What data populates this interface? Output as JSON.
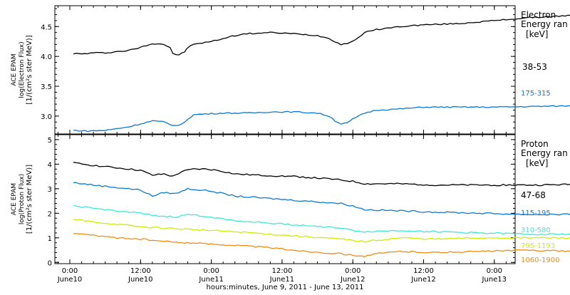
{
  "chart_data": [
    {
      "type": "line",
      "ylabel_lines": [
        "ACE EPAM",
        "log(Electron Flux)",
        "[1/(cm²s ster MeV)]"
      ],
      "legend_title": [
        "Electron",
        "Energy ran",
        "[keV]"
      ],
      "ylim": [
        2.7,
        4.85
      ],
      "yticks": [
        {
          "v": 3.0,
          "label": "3.0"
        },
        {
          "v": 3.5,
          "label": "3.5"
        },
        {
          "v": 4.0,
          "label": "4.0"
        },
        {
          "v": 4.5,
          "label": "4.5"
        }
      ],
      "series": [
        {
          "name": "38-53",
          "color": "#000000",
          "points": [
            [
              0.6,
              4.05
            ],
            [
              2,
              4.04
            ],
            [
              4,
              4.06
            ],
            [
              6,
              4.06
            ],
            [
              8,
              4.08
            ],
            [
              10,
              4.1
            ],
            [
              12,
              4.15
            ],
            [
              13.5,
              4.2
            ],
            [
              15,
              4.22
            ],
            [
              16,
              4.2
            ],
            [
              17,
              4.15
            ],
            [
              17.5,
              4.05
            ],
            [
              18.5,
              4.02
            ],
            [
              19.5,
              4.08
            ],
            [
              20,
              4.15
            ],
            [
              21,
              4.2
            ],
            [
              22,
              4.22
            ],
            [
              24,
              4.25
            ],
            [
              26,
              4.3
            ],
            [
              28,
              4.35
            ],
            [
              30,
              4.38
            ],
            [
              34,
              4.4
            ],
            [
              38,
              4.38
            ],
            [
              42,
              4.35
            ],
            [
              44,
              4.3
            ],
            [
              45,
              4.25
            ],
            [
              46,
              4.2
            ],
            [
              47,
              4.22
            ],
            [
              48,
              4.25
            ],
            [
              50,
              4.4
            ],
            [
              52,
              4.45
            ],
            [
              56,
              4.5
            ],
            [
              60,
              4.53
            ],
            [
              66,
              4.55
            ],
            [
              72,
              4.6
            ],
            [
              78,
              4.65
            ],
            [
              84,
              4.68
            ],
            [
              88,
              4.7
            ],
            [
              92,
              4.72
            ],
            [
              96,
              4.72
            ],
            [
              100,
              4.72
            ],
            [
              103.5,
              4.71
            ]
          ]
        },
        {
          "name": "175-315",
          "color": "#0a78d2",
          "points": [
            [
              0.6,
              2.76
            ],
            [
              3,
              2.75
            ],
            [
              6,
              2.76
            ],
            [
              8,
              2.79
            ],
            [
              10,
              2.82
            ],
            [
              12,
              2.87
            ],
            [
              14,
              2.92
            ],
            [
              16,
              2.9
            ],
            [
              17,
              2.86
            ],
            [
              18,
              2.84
            ],
            [
              19,
              2.86
            ],
            [
              20,
              2.95
            ],
            [
              21,
              3.02
            ],
            [
              22,
              3.03
            ],
            [
              26,
              3.05
            ],
            [
              30,
              3.05
            ],
            [
              34,
              3.07
            ],
            [
              38,
              3.07
            ],
            [
              42,
              3.05
            ],
            [
              44,
              3.0
            ],
            [
              45,
              2.92
            ],
            [
              46,
              2.87
            ],
            [
              47,
              2.88
            ],
            [
              48,
              2.95
            ],
            [
              50,
              3.05
            ],
            [
              52,
              3.1
            ],
            [
              56,
              3.12
            ],
            [
              60,
              3.15
            ],
            [
              66,
              3.15
            ],
            [
              72,
              3.15
            ],
            [
              78,
              3.16
            ],
            [
              84,
              3.17
            ],
            [
              88,
              3.18
            ],
            [
              94,
              3.18
            ],
            [
              100,
              3.17
            ],
            [
              103.5,
              3.17
            ]
          ]
        }
      ]
    },
    {
      "type": "line",
      "ylabel_lines": [
        "ACE EPAM",
        "log(Proton Flux)",
        "[1/(cm²s ster MeV)]"
      ],
      "legend_title": [
        "Proton",
        "Energy ran",
        "[keV]"
      ],
      "ylim": [
        -0.05,
        5.2
      ],
      "yticks": [
        {
          "v": 0,
          "label": "0"
        },
        {
          "v": 1,
          "label": "1"
        },
        {
          "v": 2,
          "label": "2"
        },
        {
          "v": 3,
          "label": "3"
        },
        {
          "v": 4,
          "label": "4"
        },
        {
          "v": 5,
          "label": "5"
        }
      ],
      "series": [
        {
          "name": "47-68",
          "color": "#000000",
          "points": [
            [
              0.6,
              4.05
            ],
            [
              4,
              3.95
            ],
            [
              8,
              3.85
            ],
            [
              12,
              3.75
            ],
            [
              14,
              3.55
            ],
            [
              16,
              3.6
            ],
            [
              17.5,
              3.5
            ],
            [
              19,
              3.7
            ],
            [
              21,
              3.8
            ],
            [
              23,
              3.8
            ],
            [
              25,
              3.75
            ],
            [
              28,
              3.6
            ],
            [
              32,
              3.55
            ],
            [
              38,
              3.5
            ],
            [
              44,
              3.4
            ],
            [
              48,
              3.3
            ],
            [
              50,
              3.2
            ],
            [
              56,
              3.2
            ],
            [
              62,
              3.15
            ],
            [
              70,
              3.15
            ],
            [
              80,
              3.15
            ],
            [
              86,
              3.18
            ],
            [
              88,
              3.35
            ],
            [
              89,
              3.15
            ],
            [
              92,
              3.3
            ],
            [
              94,
              3.15
            ],
            [
              100,
              3.12
            ],
            [
              103.5,
              3.12
            ]
          ]
        },
        {
          "name": "115-195",
          "color": "#0a78d2",
          "points": [
            [
              0.6,
              3.25
            ],
            [
              4,
              3.15
            ],
            [
              8,
              3.05
            ],
            [
              12,
              2.95
            ],
            [
              14,
              2.7
            ],
            [
              16,
              2.85
            ],
            [
              18,
              2.8
            ],
            [
              20,
              3.0
            ],
            [
              24,
              2.9
            ],
            [
              28,
              2.7
            ],
            [
              34,
              2.6
            ],
            [
              40,
              2.5
            ],
            [
              46,
              2.4
            ],
            [
              48,
              2.3
            ],
            [
              50,
              2.15
            ],
            [
              56,
              2.1
            ],
            [
              62,
              2.05
            ],
            [
              70,
              2.0
            ],
            [
              78,
              1.95
            ],
            [
              86,
              1.95
            ],
            [
              88,
              2.1
            ],
            [
              90,
              1.9
            ],
            [
              100,
              1.9
            ],
            [
              103.5,
              1.88
            ]
          ]
        },
        {
          "name": "310-580",
          "color": "#3fe8d2",
          "points": [
            [
              0.6,
              2.3
            ],
            [
              4,
              2.2
            ],
            [
              8,
              2.1
            ],
            [
              12,
              2.0
            ],
            [
              14,
              1.9
            ],
            [
              18,
              1.85
            ],
            [
              20,
              1.95
            ],
            [
              24,
              1.85
            ],
            [
              28,
              1.7
            ],
            [
              34,
              1.6
            ],
            [
              40,
              1.5
            ],
            [
              46,
              1.4
            ],
            [
              48,
              1.3
            ],
            [
              50,
              1.25
            ],
            [
              56,
              1.3
            ],
            [
              62,
              1.25
            ],
            [
              70,
              1.2
            ],
            [
              78,
              1.15
            ],
            [
              86,
              1.15
            ],
            [
              90,
              1.18
            ],
            [
              96,
              1.2
            ],
            [
              100,
              1.2
            ],
            [
              103.5,
              1.18
            ]
          ]
        },
        {
          "name": "795-1193",
          "color": "#c8f000",
          "points": [
            [
              0.6,
              1.75
            ],
            [
              4,
              1.65
            ],
            [
              8,
              1.55
            ],
            [
              12,
              1.45
            ],
            [
              16,
              1.4
            ],
            [
              20,
              1.35
            ],
            [
              24,
              1.3
            ],
            [
              28,
              1.25
            ],
            [
              34,
              1.15
            ],
            [
              40,
              1.05
            ],
            [
              46,
              0.95
            ],
            [
              50,
              0.85
            ],
            [
              52,
              0.9
            ],
            [
              56,
              1.0
            ],
            [
              62,
              0.95
            ],
            [
              70,
              1.0
            ],
            [
              78,
              1.0
            ],
            [
              86,
              1.0
            ],
            [
              90,
              0.95
            ],
            [
              96,
              1.05
            ],
            [
              100,
              1.05
            ],
            [
              103.5,
              1.05
            ]
          ]
        },
        {
          "name": "1060-1900",
          "color": "#f08c14",
          "points": [
            [
              0.6,
              1.2
            ],
            [
              4,
              1.1
            ],
            [
              8,
              1.0
            ],
            [
              12,
              0.95
            ],
            [
              16,
              0.85
            ],
            [
              20,
              0.8
            ],
            [
              24,
              0.75
            ],
            [
              28,
              0.7
            ],
            [
              34,
              0.6
            ],
            [
              40,
              0.45
            ],
            [
              46,
              0.35
            ],
            [
              50,
              0.25
            ],
            [
              52,
              0.35
            ],
            [
              56,
              0.45
            ],
            [
              62,
              0.4
            ],
            [
              70,
              0.45
            ],
            [
              78,
              0.5
            ],
            [
              86,
              0.45
            ],
            [
              90,
              0.5
            ],
            [
              96,
              0.65
            ],
            [
              100,
              0.7
            ],
            [
              103.5,
              0.7
            ]
          ]
        }
      ]
    }
  ],
  "x_axis": {
    "title": "hours:minutes, June  9, 2011 - June 13, 2011",
    "range_hours": [
      -2,
      110
    ],
    "ticks": [
      {
        "h": 0,
        "time": "0:00",
        "date": "June10"
      },
      {
        "h": 12,
        "time": "12:00",
        "date": "June10"
      },
      {
        "h": 24,
        "time": "0:00",
        "date": "June11"
      },
      {
        "h": 36,
        "time": "12:00",
        "date": "June11"
      },
      {
        "h": 48,
        "time": "0:00",
        "date": "June12"
      },
      {
        "h": 60,
        "time": "12:00",
        "date": "June12"
      },
      {
        "h": 72,
        "time": "0:00",
        "date": "June13"
      }
    ]
  }
}
